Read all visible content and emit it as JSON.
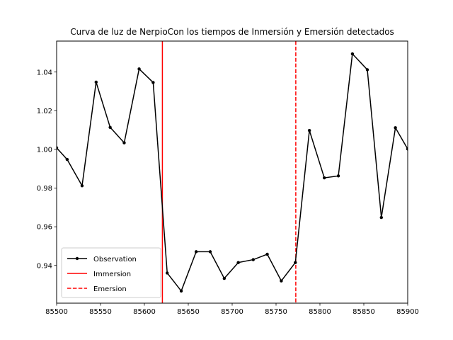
{
  "chart_data": {
    "type": "line",
    "title": "Curva de luz de NerpioCon los tiempos de Inmersión y Emersión detectados",
    "xlabel": "",
    "ylabel": "",
    "xlim": [
      85500,
      85900
    ],
    "ylim": [
      0.9205,
      1.056
    ],
    "xticks": [
      85500,
      85550,
      85600,
      85650,
      85700,
      85750,
      85800,
      85850,
      85900
    ],
    "yticks": [
      0.94,
      0.96,
      0.98,
      1.0,
      1.02,
      1.04
    ],
    "ytick_labels": [
      "0.94",
      "0.96",
      "0.98",
      "1.00",
      "1.02",
      "1.04"
    ],
    "grid": false,
    "legend_position": "lower-left",
    "series": [
      {
        "name": "Observation",
        "color": "#000000",
        "marker": "point",
        "x": [
          85500,
          85512,
          85529,
          85545,
          85561,
          85577,
          85594,
          85610,
          85626,
          85642,
          85659,
          85675,
          85691,
          85707,
          85724,
          85740,
          85756,
          85772,
          85788,
          85805,
          85821,
          85837,
          85854,
          85870,
          85886,
          85900
        ],
        "y": [
          1.0008,
          0.9948,
          0.9812,
          1.0348,
          1.0114,
          1.0034,
          1.0416,
          1.0346,
          0.9361,
          0.9268,
          0.9471,
          0.9471,
          0.9333,
          0.9415,
          0.943,
          0.9458,
          0.932,
          0.9415,
          1.0098,
          0.9853,
          0.9863,
          1.0494,
          1.0412,
          0.9648,
          1.0112,
          1.0002
        ]
      }
    ],
    "vlines": [
      {
        "name": "Immersion",
        "x": 85620.5,
        "color": "#ff0000",
        "style": "solid"
      },
      {
        "name": "Emersion",
        "x": 85772.5,
        "color": "#ff0000",
        "style": "dashed"
      }
    ]
  }
}
